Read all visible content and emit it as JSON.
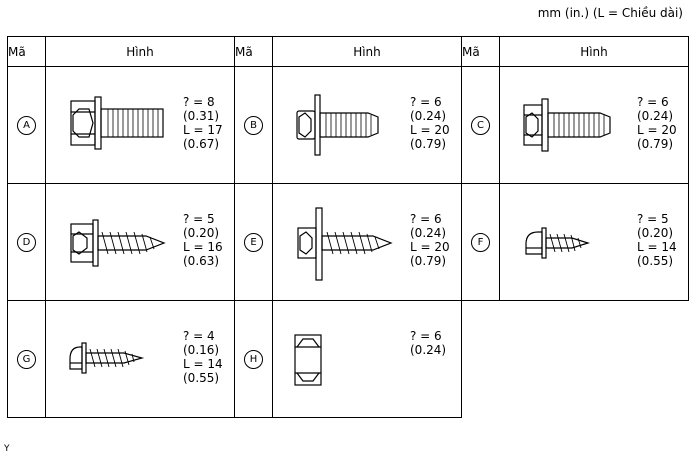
{
  "units_note": "mm (in.) (L = Chiều dài)",
  "headers": {
    "code": "Mã",
    "figure": "Hình"
  },
  "items": [
    {
      "code": "A",
      "d": "? = 8",
      "d_in": "(0.31)",
      "length": "L = 17",
      "length_in": "(0.67)",
      "icon": "hex-flange-bolt-icon"
    },
    {
      "code": "B",
      "d": "? = 6",
      "d_in": "(0.24)",
      "length": "L = 20",
      "length_in": "(0.79)",
      "icon": "hex-washer-bolt-icon"
    },
    {
      "code": "C",
      "d": "? = 6",
      "d_in": "(0.24)",
      "length": "L = 20",
      "length_in": "(0.79)",
      "icon": "hex-flange-bolt-icon"
    },
    {
      "code": "D",
      "d": "? = 5",
      "d_in": "(0.20)",
      "length": "L = 16",
      "length_in": "(0.63)",
      "icon": "hex-tapping-screw-icon"
    },
    {
      "code": "E",
      "d": "? = 6",
      "d_in": "(0.24)",
      "length": "L = 20",
      "length_in": "(0.79)",
      "icon": "hex-washer-tapping-screw-icon"
    },
    {
      "code": "F",
      "d": "? = 5",
      "d_in": "(0.20)",
      "length": "L = 14",
      "length_in": "(0.55)",
      "icon": "pan-head-tapping-screw-icon"
    },
    {
      "code": "G",
      "d": "? = 4",
      "d_in": "(0.16)",
      "length": "L = 14",
      "length_in": "(0.55)",
      "icon": "pan-head-tapping-screw-icon"
    },
    {
      "code": "H",
      "d": "? = 6",
      "d_in": "(0.24)",
      "length": "",
      "length_in": "",
      "icon": "hex-nut-icon"
    }
  ],
  "footer_mark": "Y"
}
